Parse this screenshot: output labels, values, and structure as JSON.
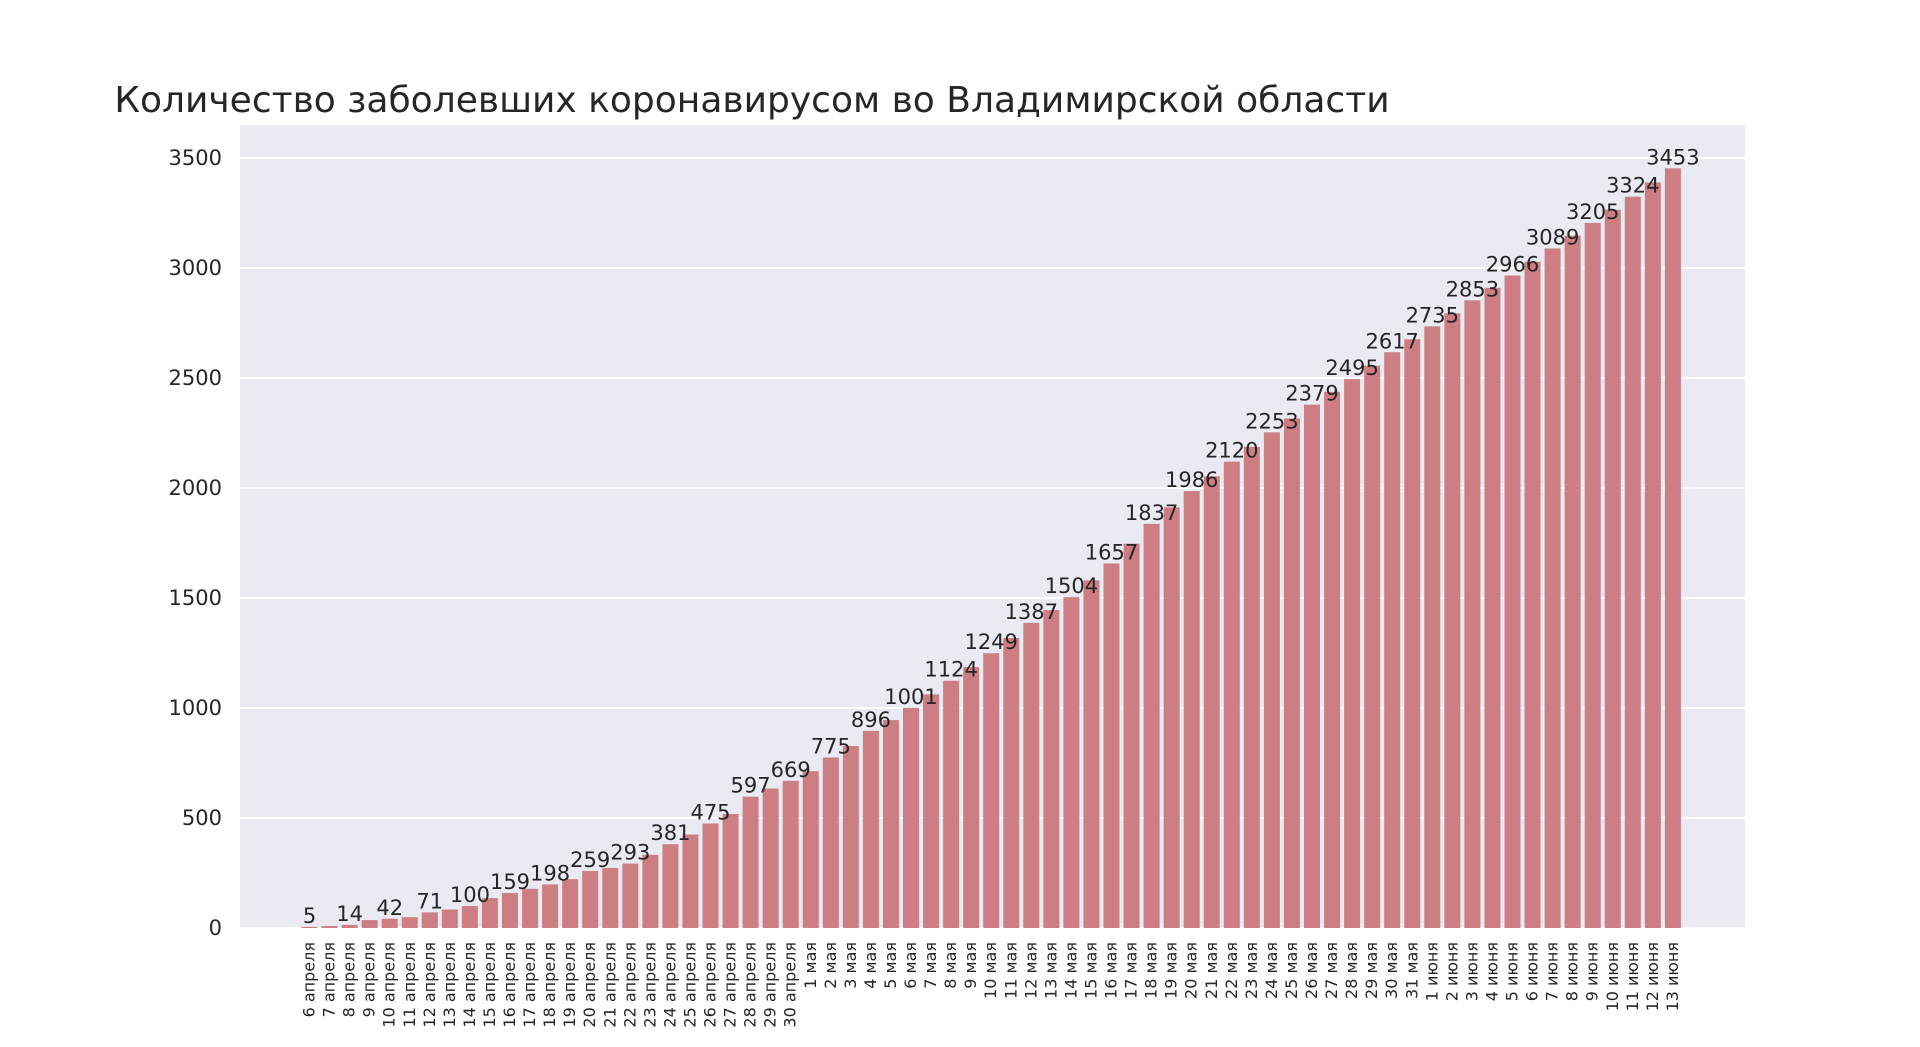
{
  "chart_data": {
    "type": "bar",
    "title": "Количество заболевших коронавирусом во Владимирской области",
    "xlabel": "",
    "ylabel": "",
    "ylim": [
      0,
      3650
    ],
    "yticks": [
      "0",
      "500",
      "1000",
      "1500",
      "2000",
      "2500",
      "3000",
      "3500"
    ],
    "grid": true,
    "colors": {
      "background": "#eaeaf2",
      "bar": "#cd7e83",
      "grid": "#ffffff",
      "text": "#262626"
    },
    "categories": [
      "6 апреля",
      "7 апреля",
      "8 апреля",
      "9 апреля",
      "10 апреля",
      "11 апреля",
      "12 апреля",
      "13 апреля",
      "14 апреля",
      "15 апреля",
      "16 апреля",
      "17 апреля",
      "18 апреля",
      "19 апреля",
      "20 апреля",
      "21 апреля",
      "22 апреля",
      "23 апреля",
      "24 апреля",
      "25 апреля",
      "26 апреля",
      "27 апреля",
      "28 апреля",
      "29 апреля",
      "30 апреля",
      "1 мая",
      "2 мая",
      "3 мая",
      "4 мая",
      "5 мая",
      "6 мая",
      "7 мая",
      "8 мая",
      "9 мая",
      "10 мая",
      "11 мая",
      "12 мая",
      "13 мая",
      "14 мая",
      "15 мая",
      "16 мая",
      "17 мая",
      "18 мая",
      "19 мая",
      "20 мая",
      "21 мая",
      "22 мая",
      "23 мая",
      "24 мая",
      "25 мая",
      "26 мая",
      "27 мая",
      "28 мая",
      "29 мая",
      "30 мая",
      "31 мая",
      "1 июня",
      "2 июня",
      "3 июня",
      "4 июня",
      "5 июня",
      "6 июня",
      "7 июня",
      "8 июня",
      "9 июня",
      "10 июня",
      "11 июня",
      "12 июня",
      "13 июня"
    ],
    "values": [
      5,
      9,
      14,
      36,
      42,
      49,
      71,
      84,
      100,
      136,
      159,
      178,
      198,
      222,
      259,
      273,
      293,
      333,
      381,
      425,
      475,
      518,
      597,
      634,
      669,
      713,
      775,
      827,
      896,
      945,
      1001,
      1062,
      1124,
      1186,
      1249,
      1318,
      1387,
      1445,
      1504,
      1580,
      1657,
      1747,
      1837,
      1912,
      1986,
      2053,
      2120,
      2187,
      2253,
      2316,
      2379,
      2437,
      2495,
      2556,
      2617,
      2676,
      2735,
      2794,
      2853,
      2910,
      2966,
      3028,
      3089,
      3147,
      3205,
      3265,
      3324,
      3389,
      3453
    ],
    "data_labels": [
      "5",
      "",
      "14",
      "",
      "42",
      "",
      "71",
      "",
      "100",
      "",
      "159",
      "",
      "198",
      "",
      "259",
      "",
      "293",
      "",
      "381",
      "",
      "475",
      "",
      "597",
      "",
      "669",
      "",
      "775",
      "",
      "896",
      "",
      "1001",
      "",
      "1124",
      "",
      "1249",
      "",
      "1387",
      "",
      "1504",
      "",
      "1657",
      "",
      "1837",
      "",
      "1986",
      "",
      "2120",
      "",
      "2253",
      "",
      "2379",
      "",
      "2495",
      "",
      "2617",
      "",
      "2735",
      "",
      "2853",
      "",
      "2966",
      "",
      "3089",
      "",
      "3205",
      "",
      "3324",
      "",
      "3453"
    ]
  }
}
